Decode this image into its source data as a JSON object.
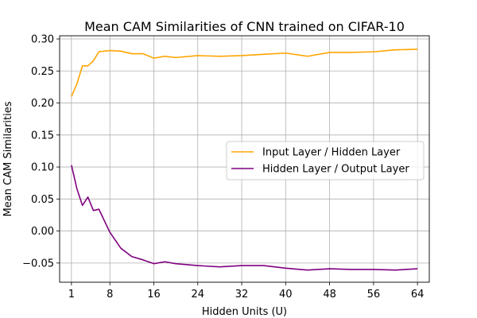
{
  "chart_data": {
    "type": "line",
    "title": "Mean CAM Similarities of CNN trained on CIFAR-10",
    "xlabel": "Hidden Units (U)",
    "ylabel": "Mean CAM Similarities",
    "xlim": [
      -1.15,
      66.15
    ],
    "ylim": [
      -0.08,
      0.305
    ],
    "xticks": [
      1,
      8,
      16,
      24,
      32,
      40,
      48,
      56,
      64
    ],
    "xtick_labels": [
      "1",
      "8",
      "16",
      "24",
      "32",
      "40",
      "48",
      "56",
      "64"
    ],
    "yticks": [
      -0.05,
      0.0,
      0.05,
      0.1,
      0.15,
      0.2,
      0.25,
      0.3
    ],
    "ytick_labels": [
      "−0.05",
      "0.00",
      "0.05",
      "0.10",
      "0.15",
      "0.20",
      "0.25",
      "0.30"
    ],
    "grid": true,
    "legend_position": "center-right",
    "series": [
      {
        "name": "Input Layer / Hidden Layer",
        "color": "#ffa500",
        "x": [
          1,
          2,
          3,
          4,
          5,
          6,
          8,
          10,
          12,
          14,
          16,
          18,
          20,
          24,
          28,
          32,
          36,
          40,
          44,
          48,
          52,
          56,
          60,
          64
        ],
        "y": [
          0.21,
          0.23,
          0.258,
          0.258,
          0.266,
          0.28,
          0.282,
          0.281,
          0.277,
          0.277,
          0.27,
          0.273,
          0.271,
          0.274,
          0.273,
          0.274,
          0.276,
          0.278,
          0.273,
          0.279,
          0.279,
          0.28,
          0.283,
          0.284
        ]
      },
      {
        "name": "Hidden Layer / Output Layer",
        "color": "#800080",
        "x": [
          1,
          2,
          3,
          4,
          5,
          6,
          8,
          10,
          12,
          14,
          16,
          18,
          20,
          24,
          28,
          32,
          36,
          40,
          44,
          48,
          52,
          56,
          60,
          64
        ],
        "y": [
          0.103,
          0.066,
          0.04,
          0.053,
          0.032,
          0.034,
          -0.002,
          -0.027,
          -0.04,
          -0.045,
          -0.051,
          -0.048,
          -0.051,
          -0.054,
          -0.056,
          -0.054,
          -0.054,
          -0.058,
          -0.061,
          -0.059,
          -0.06,
          -0.06,
          -0.061,
          -0.059
        ]
      }
    ]
  }
}
